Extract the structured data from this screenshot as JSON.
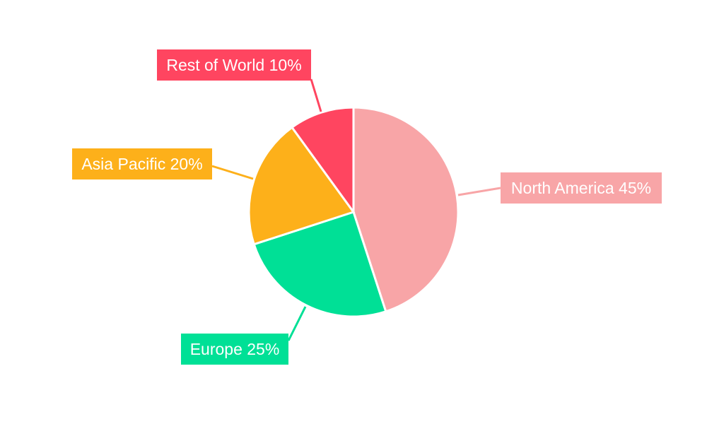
{
  "chart_data": {
    "type": "pie",
    "title": "",
    "start_angle": "top",
    "direction": "clockwise",
    "slices": [
      {
        "label": "North America",
        "value": 45,
        "display": "North America 45%",
        "color": "#f8a5a7"
      },
      {
        "label": "Europe",
        "value": 25,
        "display": "Europe 25%",
        "color": "#00e096"
      },
      {
        "label": "Asia Pacific",
        "value": 20,
        "display": "Asia Pacific 20%",
        "color": "#fdb01a"
      },
      {
        "label": "Rest of World",
        "value": 10,
        "display": "Rest of World 10%",
        "color": "#ff4560"
      }
    ],
    "legend": "none"
  }
}
